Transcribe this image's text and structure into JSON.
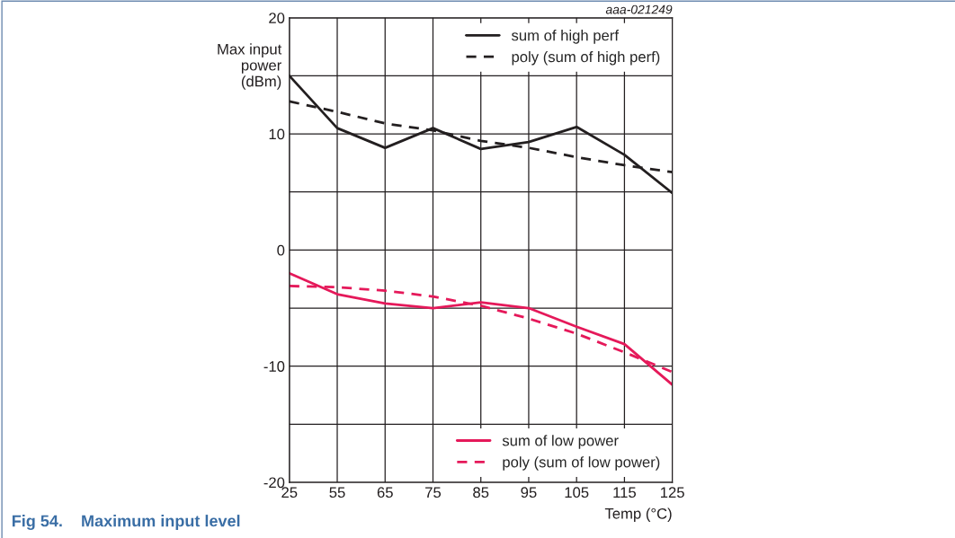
{
  "chart_data": {
    "type": "line",
    "title": "Fig 54.    Maximum input level",
    "xlabel": "Temp (°C)",
    "ylabel": "Max input\npower\n(dBm)",
    "annotations": [
      "aaa-021249"
    ],
    "categories": [
      "25",
      "55",
      "65",
      "75",
      "85",
      "95",
      "105",
      "115",
      "125"
    ],
    "series": [
      {
        "name": "sum of high perf",
        "color": "#231f20",
        "line_style": "solid",
        "values": [
          15,
          10.5,
          8.8,
          10.5,
          8.7,
          9.3,
          10.6,
          8.2,
          4.9
        ]
      },
      {
        "name": "poly (sum of high perf)",
        "color": "#231f20",
        "line_style": "dashed",
        "values": [
          12.8,
          11.9,
          10.9,
          10.3,
          9.4,
          8.8,
          8.0,
          7.3,
          6.7
        ]
      },
      {
        "name": "sum of low power",
        "color": "#e5195a",
        "line_style": "solid",
        "values": [
          -2.0,
          -3.8,
          -4.6,
          -5.0,
          -4.5,
          -5.0,
          -6.6,
          -8.1,
          -11.6
        ]
      },
      {
        "name": "poly (sum of low power)",
        "color": "#e5195a",
        "line_style": "dashed",
        "values": [
          -3.1,
          -3.2,
          -3.5,
          -4.0,
          -4.8,
          -5.9,
          -7.2,
          -8.8,
          -10.5
        ]
      }
    ],
    "ylim": [
      -20,
      20
    ],
    "yticks": [
      -20,
      {
        "value": -15,
        "label": null
      },
      -10,
      {
        "value": -5,
        "label": null
      },
      0,
      {
        "value": 5,
        "label": null
      },
      10,
      {
        "value": 15,
        "label": null
      },
      20
    ],
    "grid": true,
    "legend": "right",
    "marker": "none"
  }
}
